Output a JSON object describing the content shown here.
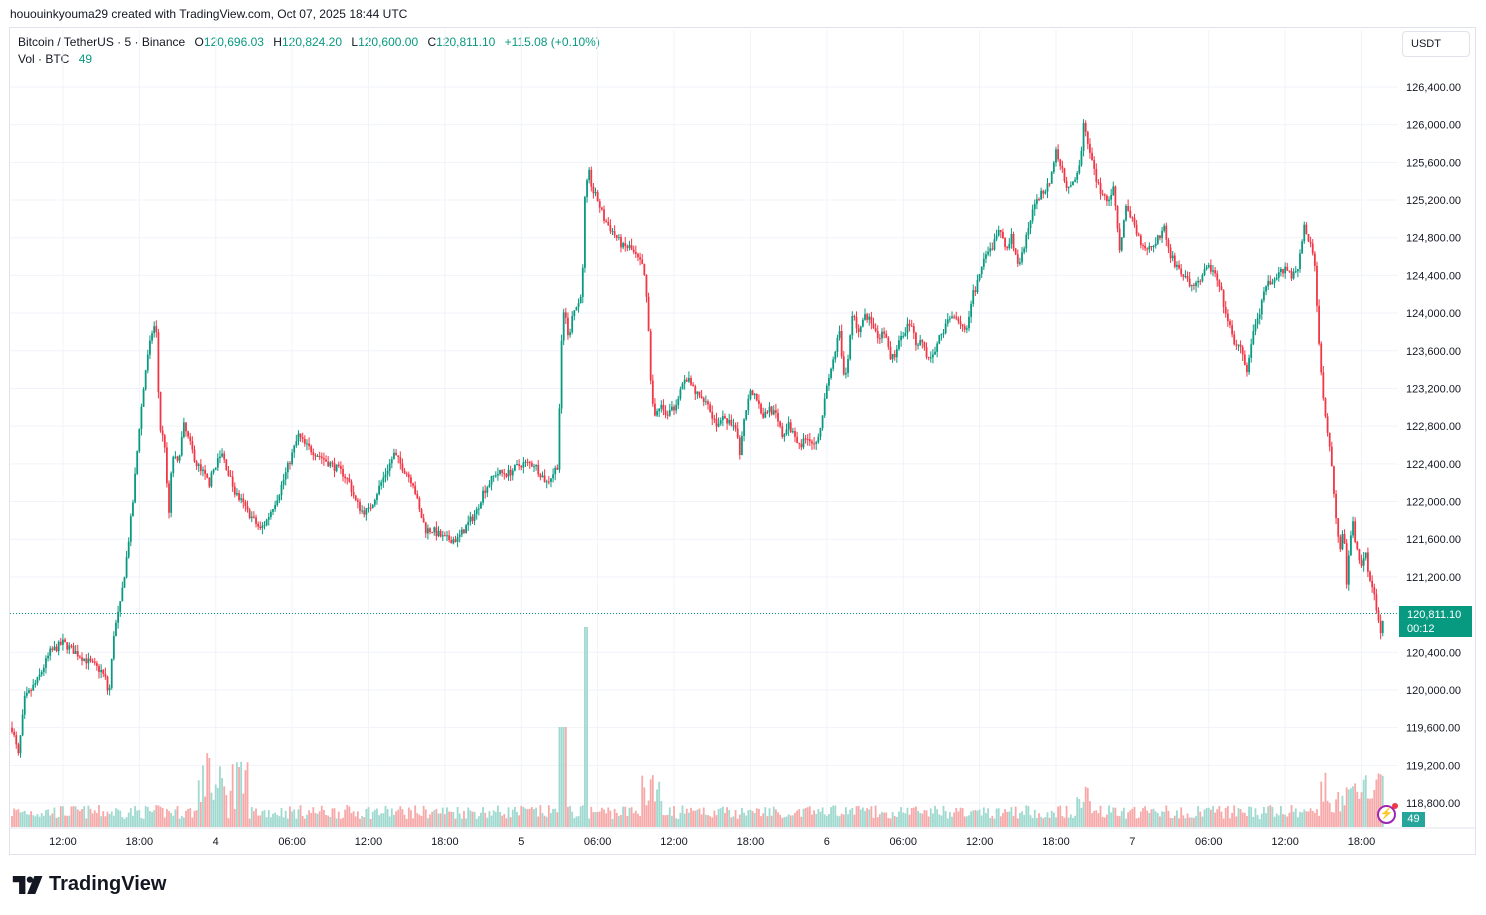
{
  "header": {
    "text": "hououinkyouma29 created with TradingView.com, Oct 07, 2025 18:44 UTC"
  },
  "legend": {
    "symbol": "Bitcoin / TetherUS · 5 · Binance",
    "o_label": "O",
    "o_value": "120,696.03",
    "h_label": "H",
    "h_value": "120,824.20",
    "l_label": "L",
    "l_value": "120,600.00",
    "c_label": "C",
    "c_value": "120,811.10",
    "change": "+115.08 (+0.10%)",
    "vol_label": "Vol · BTC",
    "vol_value": "49"
  },
  "currency_button": "USDT",
  "last_price": {
    "value": "120,811.10",
    "countdown": "00:12"
  },
  "volume_badge": "49",
  "logo": {
    "text": "TradingView"
  },
  "colors": {
    "up": "#089981",
    "down": "#f23645",
    "vol_up": "#9fd9cf",
    "vol_down": "#f7a9a9",
    "grid": "#f0f3fa"
  },
  "chart_data": {
    "type": "candlestick",
    "title": "Bitcoin / TetherUS · 5 · Binance",
    "y_ticks": [
      "126,400.00",
      "126,000.00",
      "125,600.00",
      "125,200.00",
      "124,800.00",
      "124,400.00",
      "124,000.00",
      "123,600.00",
      "123,200.00",
      "122,800.00",
      "122,400.00",
      "122,000.00",
      "121,600.00",
      "121,200.00",
      "120,400.00",
      "120,000.00",
      "119,600.00",
      "119,200.00",
      "118,800.00"
    ],
    "y_tick_values": [
      126400,
      126000,
      125600,
      125200,
      124800,
      124400,
      124000,
      123600,
      123200,
      122800,
      122400,
      122000,
      121600,
      121200,
      120400,
      120000,
      119600,
      119200,
      118800
    ],
    "x_ticks": [
      "12:00",
      "18:00",
      "4",
      "06:00",
      "12:00",
      "18:00",
      "5",
      "06:00",
      "12:00",
      "18:00",
      "6",
      "06:00",
      "12:00",
      "18:00",
      "7",
      "06:00",
      "12:00",
      "18:00"
    ],
    "ylim": [
      118600,
      126800
    ],
    "last_value": 120811.1,
    "price_path": [
      [
        0,
        119600
      ],
      [
        0.5,
        119300
      ],
      [
        1,
        119900
      ],
      [
        2,
        120100
      ],
      [
        3,
        120400
      ],
      [
        4,
        120500
      ],
      [
        5,
        120400
      ],
      [
        6,
        120300
      ],
      [
        7,
        120200
      ],
      [
        7.4,
        120100
      ],
      [
        7.6,
        119900
      ],
      [
        8,
        120600
      ],
      [
        8.5,
        120900
      ],
      [
        9,
        121400
      ],
      [
        9.5,
        122000
      ],
      [
        10,
        122800
      ],
      [
        10.5,
        123400
      ],
      [
        11,
        123800
      ],
      [
        11.3,
        123900
      ],
      [
        11.6,
        122800
      ],
      [
        12,
        122600
      ],
      [
        12.3,
        121800
      ],
      [
        12.6,
        122500
      ],
      [
        13,
        122400
      ],
      [
        13.5,
        122800
      ],
      [
        14,
        122600
      ],
      [
        14.5,
        122400
      ],
      [
        15,
        122300
      ],
      [
        15.5,
        122200
      ],
      [
        16,
        122400
      ],
      [
        16.5,
        122500
      ],
      [
        17,
        122300
      ],
      [
        17.5,
        122100
      ],
      [
        18,
        122000
      ],
      [
        18.5,
        121900
      ],
      [
        19,
        121800
      ],
      [
        19.5,
        121700
      ],
      [
        20,
        121800
      ],
      [
        21,
        122100
      ],
      [
        22,
        122500
      ],
      [
        22.5,
        122700
      ],
      [
        23,
        122600
      ],
      [
        24,
        122500
      ],
      [
        25,
        122400
      ],
      [
        26,
        122300
      ],
      [
        26.5,
        122200
      ],
      [
        27,
        122000
      ],
      [
        27.5,
        121900
      ],
      [
        28,
        121900
      ],
      [
        29,
        122200
      ],
      [
        30,
        122500
      ],
      [
        30.5,
        122400
      ],
      [
        31,
        122300
      ],
      [
        31.5,
        122200
      ],
      [
        32,
        121900
      ],
      [
        32.5,
        121700
      ],
      [
        33,
        121700
      ],
      [
        34,
        121600
      ],
      [
        35,
        121600
      ],
      [
        35.5,
        121700
      ],
      [
        36,
        121800
      ],
      [
        36.5,
        121900
      ],
      [
        37,
        122100
      ],
      [
        38,
        122300
      ],
      [
        39,
        122300
      ],
      [
        40,
        122400
      ],
      [
        41,
        122400
      ],
      [
        41.5,
        122300
      ],
      [
        42,
        122200
      ],
      [
        42.5,
        122300
      ],
      [
        42.9,
        122400
      ],
      [
        43,
        123000
      ],
      [
        43.2,
        123800
      ],
      [
        43.4,
        124100
      ],
      [
        43.7,
        123700
      ],
      [
        44,
        124000
      ],
      [
        44.5,
        124100
      ],
      [
        44.8,
        124300
      ],
      [
        45,
        125200
      ],
      [
        45.3,
        125500
      ],
      [
        45.6,
        125300
      ],
      [
        46,
        125200
      ],
      [
        46.5,
        125000
      ],
      [
        47,
        124900
      ],
      [
        47.5,
        124800
      ],
      [
        48,
        124700
      ],
      [
        48.5,
        124700
      ],
      [
        49,
        124600
      ],
      [
        49.5,
        124500
      ],
      [
        49.8,
        124300
      ],
      [
        50,
        123800
      ],
      [
        50.2,
        123200
      ],
      [
        50.5,
        122900
      ],
      [
        51,
        123000
      ],
      [
        51.5,
        122900
      ],
      [
        52,
        123000
      ],
      [
        52.5,
        123200
      ],
      [
        53,
        123300
      ],
      [
        53.5,
        123200
      ],
      [
        54,
        123100
      ],
      [
        54.5,
        123100
      ],
      [
        55,
        122900
      ],
      [
        55.5,
        122800
      ],
      [
        56,
        122900
      ],
      [
        56.5,
        122800
      ],
      [
        57,
        122700
      ],
      [
        57.2,
        122500
      ],
      [
        57.5,
        122900
      ],
      [
        58,
        123200
      ],
      [
        58.5,
        123100
      ],
      [
        59,
        122900
      ],
      [
        59.5,
        123000
      ],
      [
        60,
        122900
      ],
      [
        60.5,
        122700
      ],
      [
        61,
        122800
      ],
      [
        61.5,
        122700
      ],
      [
        62,
        122600
      ],
      [
        62.5,
        122700
      ],
      [
        63,
        122600
      ],
      [
        63.5,
        122800
      ],
      [
        64,
        123200
      ],
      [
        64.5,
        123500
      ],
      [
        65,
        123800
      ],
      [
        65.3,
        123300
      ],
      [
        65.6,
        123400
      ],
      [
        66,
        124000
      ],
      [
        66.5,
        123800
      ],
      [
        67,
        124000
      ],
      [
        67.5,
        123900
      ],
      [
        68,
        123700
      ],
      [
        68.5,
        123800
      ],
      [
        69,
        123500
      ],
      [
        69.5,
        123600
      ],
      [
        70,
        123800
      ],
      [
        70.5,
        123900
      ],
      [
        71,
        123700
      ],
      [
        71.5,
        123700
      ],
      [
        72,
        123500
      ],
      [
        72.5,
        123600
      ],
      [
        73,
        123800
      ],
      [
        73.5,
        123900
      ],
      [
        74,
        124000
      ],
      [
        74.5,
        123900
      ],
      [
        75,
        123800
      ],
      [
        75.5,
        124200
      ],
      [
        76,
        124400
      ],
      [
        76.5,
        124600
      ],
      [
        77,
        124700
      ],
      [
        77.5,
        124900
      ],
      [
        78,
        124700
      ],
      [
        78.5,
        124800
      ],
      [
        79,
        124500
      ],
      [
        79.5,
        124700
      ],
      [
        80,
        125000
      ],
      [
        80.5,
        125200
      ],
      [
        81,
        125300
      ],
      [
        81.5,
        125400
      ],
      [
        82,
        125700
      ],
      [
        82.5,
        125500
      ],
      [
        83,
        125300
      ],
      [
        83.5,
        125400
      ],
      [
        84,
        125700
      ],
      [
        84.2,
        126100
      ],
      [
        84.5,
        125800
      ],
      [
        85,
        125500
      ],
      [
        85.5,
        125300
      ],
      [
        86,
        125200
      ],
      [
        86.5,
        125300
      ],
      [
        87,
        124700
      ],
      [
        87.5,
        125100
      ],
      [
        88,
        125000
      ],
      [
        88.5,
        124800
      ],
      [
        89,
        124700
      ],
      [
        89.5,
        124700
      ],
      [
        90,
        124800
      ],
      [
        90.5,
        124900
      ],
      [
        91,
        124600
      ],
      [
        91.5,
        124500
      ],
      [
        92,
        124400
      ],
      [
        92.5,
        124300
      ],
      [
        93,
        124300
      ],
      [
        93.5,
        124400
      ],
      [
        94,
        124500
      ],
      [
        94.5,
        124400
      ],
      [
        95,
        124200
      ],
      [
        95.5,
        123900
      ],
      [
        96,
        123700
      ],
      [
        96.5,
        123600
      ],
      [
        97,
        123400
      ],
      [
        97.5,
        123800
      ],
      [
        98,
        124000
      ],
      [
        98.5,
        124300
      ],
      [
        99,
        124300
      ],
      [
        99.5,
        124400
      ],
      [
        100,
        124500
      ],
      [
        100.5,
        124400
      ],
      [
        101,
        124500
      ],
      [
        101.5,
        124900
      ],
      [
        102,
        124700
      ],
      [
        102.3,
        124600
      ],
      [
        102.6,
        123800
      ],
      [
        103,
        123100
      ],
      [
        103.3,
        122800
      ],
      [
        103.6,
        122500
      ],
      [
        104,
        121800
      ],
      [
        104.3,
        121500
      ],
      [
        104.6,
        121700
      ],
      [
        104.9,
        121000
      ],
      [
        105,
        121400
      ],
      [
        105.3,
        121800
      ],
      [
        105.6,
        121500
      ],
      [
        106,
        121300
      ],
      [
        106.3,
        121500
      ],
      [
        106.6,
        121200
      ],
      [
        107,
        121000
      ],
      [
        107.3,
        120800
      ],
      [
        107.5,
        120600
      ],
      [
        107.7,
        120811
      ]
    ]
  }
}
